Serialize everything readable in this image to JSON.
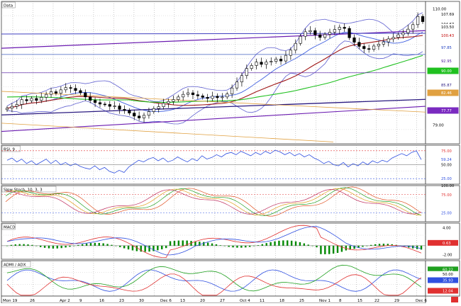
{
  "colors": {
    "background": "#ffffff",
    "grid": "#c8c8c8",
    "grid_major": "#9a9a9a",
    "price_axis_bg": "#ffffff",
    "candle": "#000000",
    "bollinger": "#6060d0",
    "ma_short": "#4060e0",
    "ma_mid": "#a01818",
    "ma_long": "#20c020",
    "channel": "#6a1ab0",
    "fib_line": "#e0a040",
    "slow_trend": "#2a1a80",
    "rsi_line": "#3050e0",
    "stoch_k": "#e05020",
    "stoch_d": "#20a020",
    "stoch_3": "#e0a020",
    "stoch_4": "#c03060",
    "macd_line": "#e03030",
    "macd_signal": "#3050e0",
    "macd_hist": "#008800",
    "adx": "#3050e0",
    "pdi": "#20a020",
    "mdi": "#e03030"
  },
  "chart_data": [
    {
      "type": "candlestick",
      "panel_label": "Data",
      "y_ticks": [
        110.0,
        79.0
      ],
      "x_tick_labels": [
        "Mon 19",
        "26",
        "Apr 2",
        "9",
        "16",
        "23",
        "30",
        "Dec 6",
        "13",
        "20",
        "27",
        "Oct 4",
        "11",
        "18",
        "25",
        "Nov 1",
        "8",
        "15",
        "22",
        "29",
        "Dec 6"
      ],
      "price_tags": [
        {
          "value": "107.69",
          "color": "#ffffff",
          "text_color": "#000000"
        },
        {
          "value": "104.67",
          "color": "#ffffff",
          "text_color": "#000000"
        },
        {
          "value": "103.50",
          "color": "#ffffff",
          "text_color": "#000000"
        },
        {
          "value": "100.43",
          "color": "#ffffff",
          "text_color": "#c00000"
        },
        {
          "value": "97.85",
          "color": "#ffffff",
          "text_color": "#2040c0"
        },
        {
          "value": "92.95",
          "color": "#ffffff",
          "text_color": "#5020a0"
        },
        {
          "value": "90.00",
          "color": "#20c020",
          "text_color": "#ffffff"
        },
        {
          "value": "85.87",
          "color": "#ffffff",
          "text_color": "#2a1a80"
        },
        {
          "value": "82.46",
          "color": "#e0a040",
          "text_color": "#ffffff"
        },
        {
          "value": "77.77",
          "color": "#7a2ac0",
          "text_color": "#ffffff"
        }
      ],
      "ylim": [
        74,
        112
      ],
      "close": [
        83.5,
        84.0,
        84.5,
        85.8,
        85.5,
        86.1,
        85.6,
        86.4,
        87.2,
        87.9,
        87.5,
        88.4,
        89.0,
        88.8,
        88.2,
        87.6,
        86.5,
        85.6,
        85.0,
        84.6,
        84.5,
        84.0,
        84.1,
        83.2,
        82.9,
        82.2,
        81.4,
        80.9,
        81.6,
        82.6,
        83.4,
        83.9,
        84.8,
        85.3,
        85.8,
        86.5,
        87.2,
        87.6,
        87.1,
        86.8,
        86.4,
        86.1,
        86.7,
        86.3,
        86.5,
        87.3,
        88.9,
        90.5,
        92.2,
        94.1,
        94.9,
        95.8,
        95.2,
        95.8,
        96.0,
        96.6,
        96.1,
        97.6,
        99.0,
        100.8,
        102.7,
        103.9,
        104.2,
        103.1,
        102.4,
        103.2,
        103.8,
        104.5,
        105.1,
        104.8,
        102.3,
        101.1,
        100.0,
        99.4,
        99.2,
        100.1,
        100.6,
        101.2,
        102.0,
        102.4,
        103.1,
        103.6,
        104.6,
        105.8,
        108.0,
        106.6
      ],
      "ma_levels": {
        "short": 104.67,
        "mid": 100.43,
        "long": 90.0
      },
      "channel_levels": [
        103.5,
        92.95,
        85.87,
        77.77
      ],
      "fib_levels": [
        82.46
      ]
    },
    {
      "type": "line",
      "panel_label": "RSI, 9",
      "y_ticks": [
        75.0,
        59.24,
        50.0,
        25.0
      ],
      "ylim": [
        15,
        85
      ],
      "values": [
        58,
        62,
        55,
        60,
        52,
        57,
        50,
        55,
        60,
        52,
        58,
        50,
        54,
        48,
        52,
        47,
        44,
        42,
        48,
        41,
        45,
        38,
        35,
        40,
        36,
        46,
        52,
        58,
        55,
        60,
        63,
        57,
        62,
        55,
        58,
        64,
        59,
        55,
        61,
        57,
        66,
        60,
        63,
        68,
        64,
        70,
        72,
        68,
        74,
        70,
        66,
        72,
        68,
        74,
        70,
        76,
        73,
        68,
        72,
        66,
        70,
        64,
        68,
        62,
        58,
        52,
        56,
        50,
        48,
        54,
        46,
        52,
        48,
        55,
        50,
        57,
        53,
        58,
        55,
        62,
        66,
        70,
        66,
        72,
        75,
        59
      ]
    },
    {
      "type": "line",
      "panel_label": "Slow Stoch, 10, 3, 3",
      "y_ticks": [
        100.0,
        75.0,
        25.0
      ],
      "ylim": [
        0,
        100
      ]
    },
    {
      "type": "bar",
      "panel_label": "MACD",
      "y_ticks": [
        4.0,
        0.63,
        -2.0
      ],
      "ylim": [
        -3,
        5
      ]
    },
    {
      "type": "line",
      "panel_label": "ADMI / ADX",
      "y_ticks": [
        60.22,
        50.0,
        35.93,
        12.04
      ],
      "ylim": [
        0,
        80
      ]
    }
  ]
}
